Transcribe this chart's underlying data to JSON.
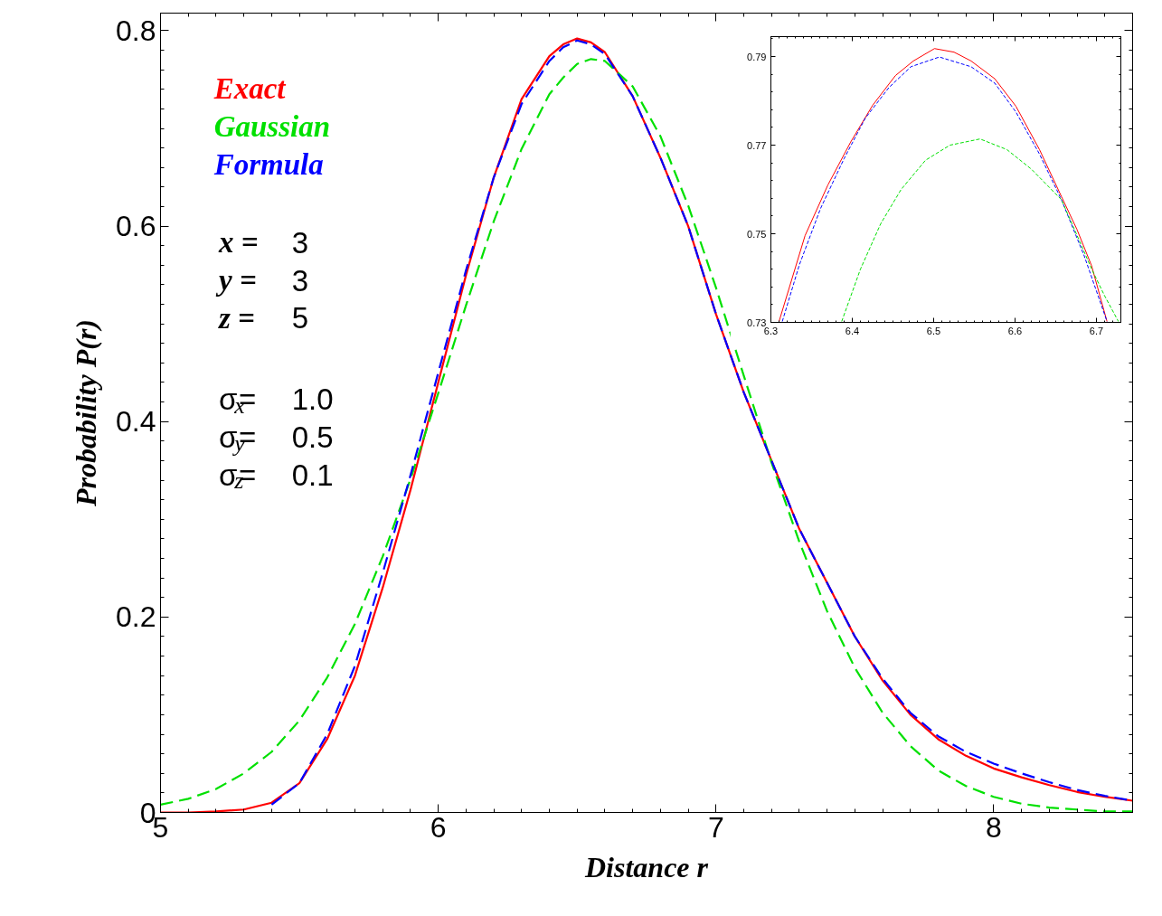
{
  "chart_data": [
    {
      "type": "line",
      "xlabel": "Distance r",
      "ylabel": "Probability P(r)",
      "legend": "top left",
      "xlim": [
        5,
        8.5
      ],
      "ylim": [
        0,
        0.818
      ],
      "xticks": [
        5,
        6,
        7,
        8
      ],
      "yticks": [
        0,
        0.2,
        0.4,
        0.6,
        0.8
      ],
      "x": [
        5.0,
        5.1,
        5.2,
        5.3,
        5.4,
        5.5,
        5.6,
        5.7,
        5.8,
        5.9,
        6.0,
        6.1,
        6.2,
        6.3,
        6.4,
        6.45,
        6.5,
        6.55,
        6.6,
        6.7,
        6.8,
        6.9,
        7.0,
        7.1,
        7.2,
        7.3,
        7.4,
        7.5,
        7.6,
        7.7,
        7.8,
        7.9,
        8.0,
        8.1,
        8.2,
        8.3,
        8.4,
        8.5
      ],
      "series": [
        {
          "name": "Exact",
          "color": "#ff0000",
          "line_style": "solid",
          "values": [
            0,
            0,
            0.001,
            0.003,
            0.01,
            0.03,
            0.075,
            0.14,
            0.23,
            0.33,
            0.44,
            0.55,
            0.65,
            0.73,
            0.774,
            0.786,
            0.792,
            0.788,
            0.778,
            0.733,
            0.67,
            0.6,
            0.51,
            0.43,
            0.36,
            0.29,
            0.235,
            0.18,
            0.135,
            0.1,
            0.075,
            0.058,
            0.045,
            0.036,
            0.028,
            0.021,
            0.016,
            0.012
          ]
        },
        {
          "name": "Gaussian",
          "color": "#00e000",
          "line_style": "dashed",
          "values": [
            0.008,
            0.014,
            0.024,
            0.04,
            0.062,
            0.094,
            0.138,
            0.193,
            0.262,
            0.341,
            0.429,
            0.519,
            0.605,
            0.679,
            0.735,
            0.752,
            0.766,
            0.771,
            0.769,
            0.743,
            0.692,
            0.621,
            0.537,
            0.447,
            0.358,
            0.277,
            0.206,
            0.148,
            0.102,
            0.068,
            0.043,
            0.027,
            0.016,
            0.009,
            0.005,
            0.003,
            0.001,
            0.001
          ]
        },
        {
          "name": "Formula",
          "color": "#0000ff",
          "line_style": "dashed",
          "values": [
            null,
            null,
            null,
            null,
            0.008,
            0.03,
            0.08,
            0.15,
            0.245,
            0.345,
            0.45,
            0.555,
            0.65,
            0.725,
            0.769,
            0.783,
            0.79,
            0.786,
            0.776,
            0.733,
            0.67,
            0.6,
            0.51,
            0.43,
            0.36,
            0.29,
            0.235,
            0.18,
            0.137,
            0.102,
            0.078,
            0.062,
            0.05,
            0.04,
            0.031,
            0.023,
            0.017,
            0.012
          ]
        }
      ],
      "annotations": [
        "x = 3",
        "y = 3",
        "z = 5",
        "σ$_{x}$= 1.0",
        "σ$_{y}$= 0.5",
        "σ$_{z}$= 0.1"
      ]
    },
    {
      "type": "line",
      "xlim": [
        6.3,
        6.73
      ],
      "ylim": [
        0.73,
        0.7945
      ],
      "xticks": [
        6.3,
        6.4,
        6.5,
        6.6,
        6.7
      ],
      "yticks": [
        0.73,
        0.75,
        0.77,
        0.79
      ],
      "series": [
        {
          "color": "#ff0000",
          "line_style": "solid",
          "x": [
            6.31,
            6.342,
            6.37,
            6.398,
            6.425,
            6.453,
            6.475,
            6.501,
            6.525,
            6.546,
            6.575,
            6.601,
            6.63,
            6.657,
            6.676,
            6.694,
            6.713
          ],
          "values": [
            0.7302,
            0.7496,
            0.761,
            0.7707,
            0.779,
            0.7857,
            0.789,
            0.7918,
            0.791,
            0.789,
            0.785,
            0.7788,
            0.769,
            0.7584,
            0.751,
            0.7428,
            0.7302
          ]
        },
        {
          "color": "#0000ff",
          "line_style": "dashed",
          "x": [
            6.314,
            6.335,
            6.361,
            6.39,
            6.416,
            6.445,
            6.472,
            6.507,
            6.546,
            6.575,
            6.601,
            6.63,
            6.657,
            6.685,
            6.713
          ],
          "values": [
            0.7302,
            0.743,
            0.7557,
            0.767,
            0.7761,
            0.783,
            0.7877,
            0.7899,
            0.7877,
            0.784,
            0.7775,
            0.768,
            0.7577,
            0.745,
            0.7302
          ]
        },
        {
          "color": "#00e000",
          "line_style": "dashed",
          "x": [
            6.387,
            6.41,
            6.435,
            6.46,
            6.49,
            6.52,
            6.557,
            6.59,
            6.62,
            6.657,
            6.694,
            6.71,
            6.727
          ],
          "values": [
            0.7302,
            0.742,
            0.7523,
            0.76,
            0.7666,
            0.77,
            0.7714,
            0.769,
            0.7646,
            0.7577,
            0.7421,
            0.736,
            0.7302
          ]
        }
      ]
    }
  ]
}
